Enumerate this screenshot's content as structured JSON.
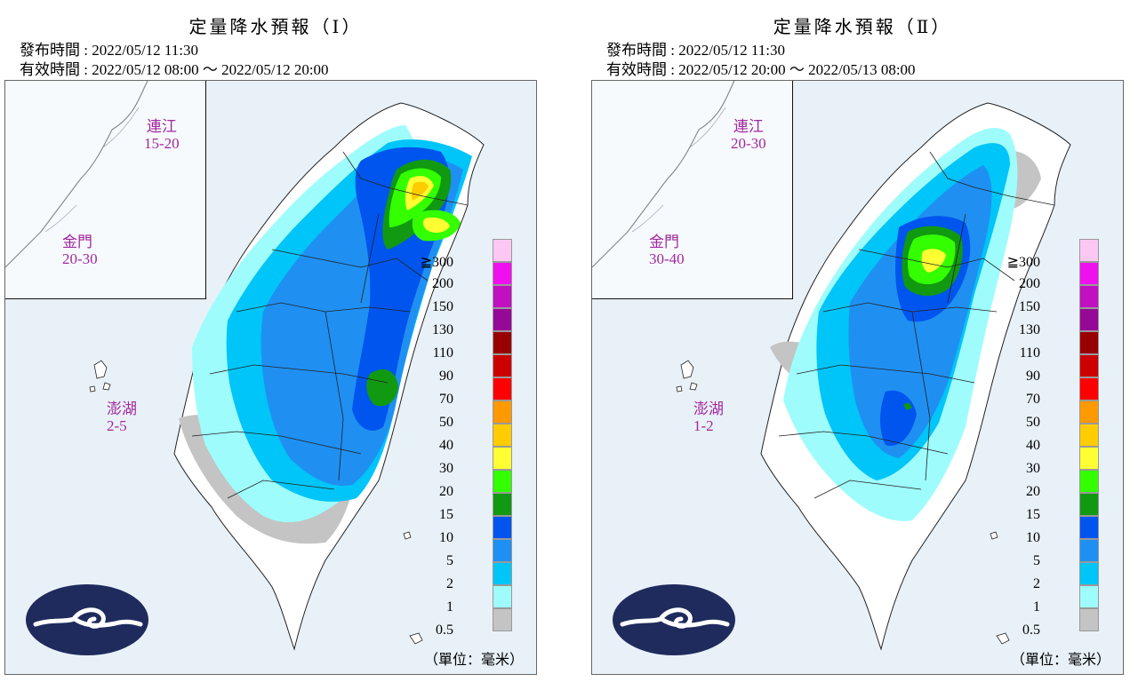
{
  "panels": [
    {
      "title": "定量降水預報（Ⅰ）",
      "issued": "發布時間 : 2022/05/12 11:30",
      "valid": "有效時間 : 2022/05/12 08:00 ～ 2022/05/12 20:00",
      "regions": [
        {
          "name": "連江",
          "value": "15-20"
        },
        {
          "name": "金門",
          "value": "20-30"
        },
        {
          "name": "澎湖",
          "value": "2-5"
        }
      ]
    },
    {
      "title": "定量降水預報（Ⅱ）",
      "issued": "發布時間 : 2022/05/12 11:30",
      "valid": "有效時間 : 2022/05/12 20:00 ～ 2022/05/13 08:00",
      "regions": [
        {
          "name": "連江",
          "value": "20-30"
        },
        {
          "name": "金門",
          "value": "30-40"
        },
        {
          "name": "澎湖",
          "value": "1-2"
        }
      ]
    }
  ],
  "legend": {
    "ticks": [
      "≧300",
      "200",
      "150",
      "130",
      "110",
      "90",
      "70",
      "50",
      "40",
      "30",
      "20",
      "15",
      "10",
      "5",
      "2",
      "1",
      "0.5"
    ],
    "colors": [
      "#fbc8f4",
      "#ee11ee",
      "#c010c0",
      "#960896",
      "#990000",
      "#cc0000",
      "#ff0000",
      "#ff9900",
      "#ffcc00",
      "#ffff33",
      "#33ff00",
      "#119911",
      "#0055ee",
      "#1f90f2",
      "#00c5f8",
      "#9ffcfc",
      "#c4c4c4"
    ],
    "unit": "（單位：毫米）"
  },
  "map_colors": {
    "sea": "#e9f1f8",
    "land": "#ffffff",
    "gray": "#c4c4c4",
    "light_cyan": "#9ffcfc",
    "cyan": "#00c5f8",
    "blue_light": "#1f90f2",
    "blue": "#0055ee",
    "green_dark": "#119911",
    "green": "#33ff00",
    "yellow": "#ffff33",
    "orange": "#ffcc00",
    "logo_navy": "#1f2b5c"
  },
  "icons": {
    "logo": "cwb-cloud-logo-icon"
  }
}
